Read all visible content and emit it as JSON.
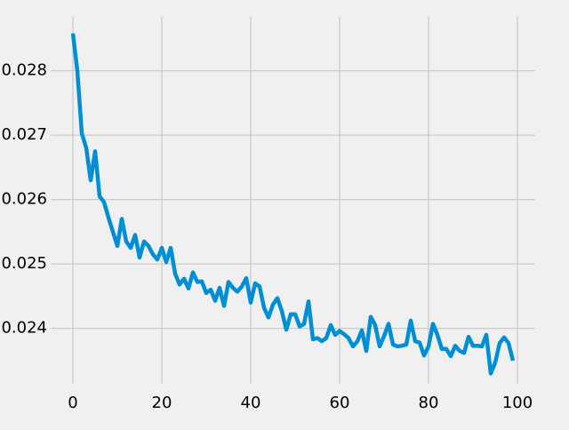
{
  "chart_data": {
    "type": "line",
    "title": "",
    "xlabel": "",
    "ylabel": "",
    "xlim": [
      -5,
      104
    ],
    "ylim": [
      0.02314,
      0.02885
    ],
    "grid": true,
    "xticks": [
      0,
      20,
      40,
      60,
      80,
      100
    ],
    "yticks": [
      0.024,
      0.025,
      0.026,
      0.027,
      0.028
    ],
    "xtick_labels": [
      "0",
      "20",
      "40",
      "60",
      "80",
      "100"
    ],
    "ytick_labels": [
      "0.024",
      "0.025",
      "0.026",
      "0.027",
      "0.028"
    ],
    "colors": {
      "series": "#008fd5",
      "grid": "#cbcbcb",
      "background": "#f0f0f0"
    },
    "series": [
      {
        "x": [
          0,
          1,
          2,
          3,
          4,
          5,
          6,
          7,
          8,
          9,
          10,
          11,
          12,
          13,
          14,
          15,
          16,
          17,
          18,
          19,
          20,
          21,
          22,
          23,
          24,
          25,
          26,
          27,
          28,
          29,
          30,
          31,
          32,
          33,
          34,
          35,
          36,
          37,
          38,
          39,
          40,
          41,
          42,
          43,
          44,
          45,
          46,
          47,
          48,
          49,
          50,
          51,
          52,
          53,
          54,
          55,
          56,
          57,
          58,
          59,
          60,
          61,
          62,
          63,
          64,
          65,
          66,
          67,
          68,
          69,
          70,
          71,
          72,
          73,
          74,
          75,
          76,
          77,
          78,
          79,
          80,
          81,
          82,
          83,
          84,
          85,
          86,
          87,
          88,
          89,
          90,
          91,
          92,
          93,
          94,
          95,
          96,
          97,
          98,
          99
        ],
        "values": [
          0.02858,
          0.028,
          0.02703,
          0.0268,
          0.0263,
          0.02675,
          0.02605,
          0.02596,
          0.02572,
          0.0255,
          0.02528,
          0.0257,
          0.02535,
          0.02525,
          0.02545,
          0.0251,
          0.02535,
          0.02528,
          0.02515,
          0.02507,
          0.02525,
          0.02503,
          0.02525,
          0.02485,
          0.02468,
          0.02477,
          0.02462,
          0.02487,
          0.02472,
          0.02473,
          0.02455,
          0.0246,
          0.02443,
          0.02463,
          0.02435,
          0.02472,
          0.02463,
          0.02457,
          0.02465,
          0.02478,
          0.0244,
          0.0247,
          0.02465,
          0.02432,
          0.02417,
          0.02437,
          0.02447,
          0.02427,
          0.02398,
          0.02422,
          0.02422,
          0.02403,
          0.02407,
          0.02442,
          0.02383,
          0.02385,
          0.0238,
          0.02385,
          0.02405,
          0.0239,
          0.02396,
          0.02391,
          0.02385,
          0.02372,
          0.0238,
          0.02397,
          0.02365,
          0.02418,
          0.02405,
          0.02372,
          0.02388,
          0.02407,
          0.02375,
          0.02372,
          0.02373,
          0.02375,
          0.02412,
          0.0238,
          0.02378,
          0.02358,
          0.02372,
          0.02407,
          0.0239,
          0.02368,
          0.02368,
          0.02357,
          0.02373,
          0.02365,
          0.02362,
          0.02387,
          0.02373,
          0.02373,
          0.02372,
          0.0239,
          0.0233,
          0.02347,
          0.02377,
          0.02386,
          0.02377,
          0.0235
        ]
      }
    ]
  }
}
